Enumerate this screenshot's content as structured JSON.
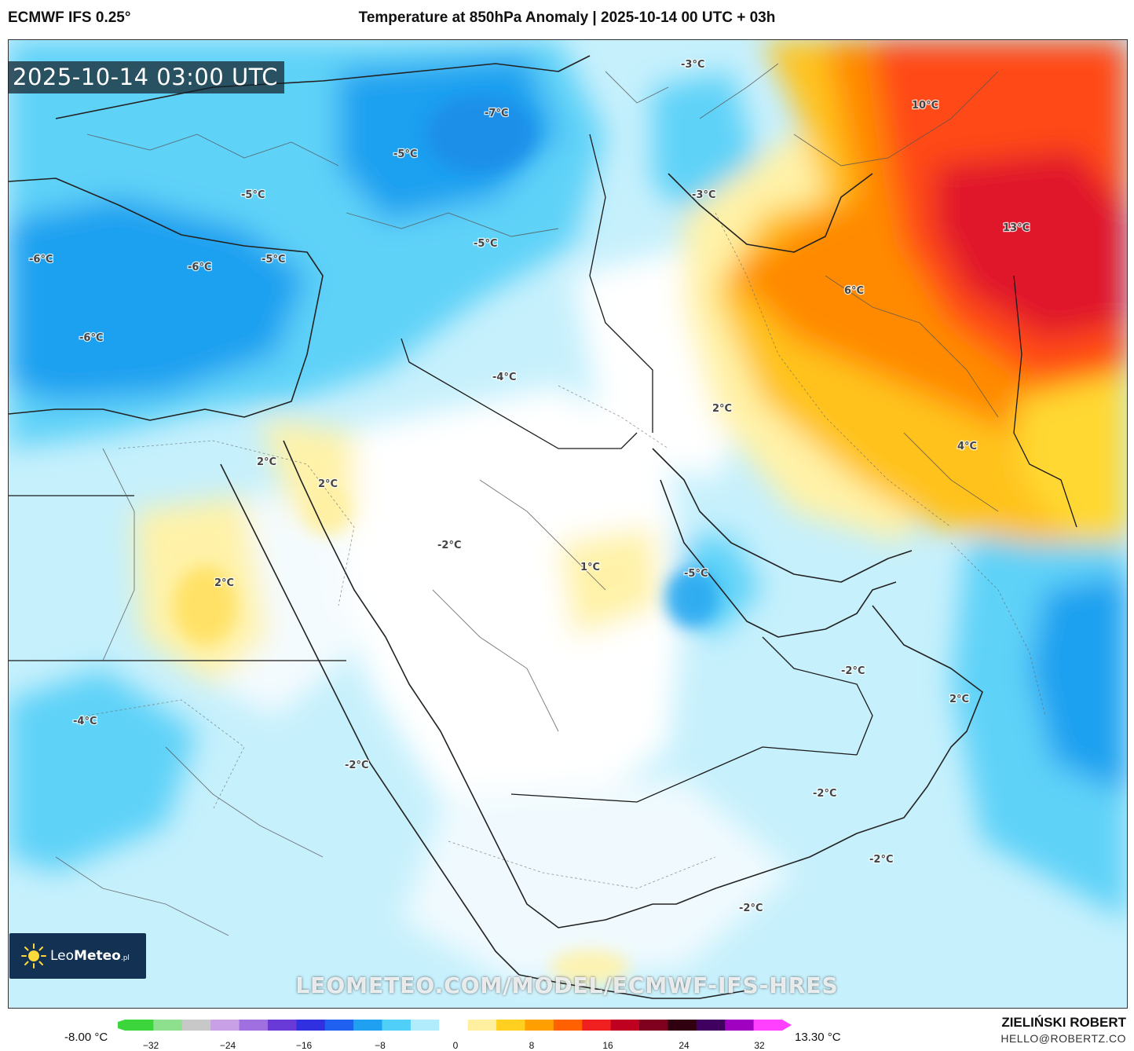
{
  "header": {
    "model": "ECMWF IFS 0.25°",
    "title": "Temperature at 850hPa Anomaly | 2025-10-14 00 UTC + 03h"
  },
  "map": {
    "timestamp": "2025-10-14 03:00 UTC",
    "watermark": "LEOMETEO.COM/MODEL/ECMWF-IFS-HRES",
    "labels": [
      {
        "text": "-3°C"
      },
      {
        "text": "-7°C"
      },
      {
        "text": "-5°C"
      },
      {
        "text": "-5°C"
      },
      {
        "text": "-3°C"
      },
      {
        "text": "10°C"
      },
      {
        "text": "-6°C"
      },
      {
        "text": "-6°C"
      },
      {
        "text": "-5°C"
      },
      {
        "text": "-5°C"
      },
      {
        "text": "13°C"
      },
      {
        "text": "6°C"
      },
      {
        "text": "-6°C"
      },
      {
        "text": "-4°C"
      },
      {
        "text": "2°C"
      },
      {
        "text": "4°C"
      },
      {
        "text": "2°C"
      },
      {
        "text": "2°C"
      },
      {
        "text": "-2°C"
      },
      {
        "text": "1°C"
      },
      {
        "text": "-5°C"
      },
      {
        "text": "2°C"
      },
      {
        "text": "-2°C"
      },
      {
        "text": "2°C"
      },
      {
        "text": "-4°C"
      },
      {
        "text": "-2°C"
      },
      {
        "text": "-2°C"
      },
      {
        "text": "-2°C"
      },
      {
        "text": "-2°C"
      }
    ]
  },
  "logo": {
    "brand": "Leo",
    "brand_bold": "Meteo",
    "suffix": ".pl"
  },
  "legend": {
    "min_label": "-8.00 °C",
    "max_label": "13.30 °C",
    "ticks": [
      "−32",
      "−24",
      "−16",
      "−8",
      "0",
      "8",
      "16",
      "24",
      "32"
    ],
    "colors": [
      "#3cd63c",
      "#8ee08e",
      "#c8c8c8",
      "#c8a0e6",
      "#a070e0",
      "#6a3ad8",
      "#3030e0",
      "#2060f0",
      "#20a0f0",
      "#50d0f8",
      "#b0ecfc",
      "#ffffff",
      "#fff0a0",
      "#ffd020",
      "#ffa000",
      "#ff6000",
      "#f02020",
      "#c00020",
      "#800020",
      "#300010",
      "#400060",
      "#a000c0",
      "#ff40ff"
    ]
  },
  "author": {
    "name": "ZIELIŃSKI ROBERT",
    "email": "HELLO@ROBERTZ.CO"
  },
  "palette": {
    "cold_strong": "#1ea0f0",
    "cold_mid": "#5fd2f8",
    "cold_light": "#bdeefc",
    "neutral": "#ffffff",
    "warm_light": "#fff2a8",
    "warm_mid": "#ffc21a",
    "warm": "#ff8a00",
    "hot": "#ff4a12",
    "hottest": "#e0142a"
  }
}
